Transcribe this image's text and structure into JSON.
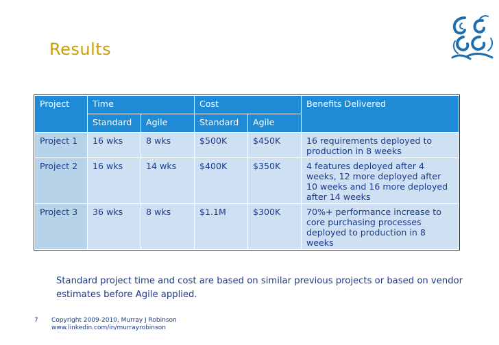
{
  "slide": {
    "title": "Results",
    "page_number": "7",
    "copyright": "Copyright 2009-2010, Murray J Robinson",
    "url": "www.linkedin.com/in/murrayrobinson",
    "note": "Standard project time and cost are based on similar previous projects or based on vendor estimates before Agile applied."
  },
  "table": {
    "headers": {
      "project": "Project",
      "time": "Time",
      "cost": "Cost",
      "benefits": "Benefits Delivered",
      "standard": "Standard",
      "agile": "Agile"
    },
    "rows": [
      {
        "project": "Project 1",
        "time_standard": "16 wks",
        "time_agile": "8 wks",
        "cost_standard": "$500K",
        "cost_agile": "$450K",
        "benefits": "16 requirements deployed to production in 8 weeks"
      },
      {
        "project": "Project 2",
        "time_standard": "16 wks",
        "time_agile": "14 wks",
        "cost_standard": "$400K",
        "cost_agile": "$350K",
        "benefits": "4 features deployed after 4 weeks, 12 more deployed after 10 weeks and 16 more deployed after 14 weeks"
      },
      {
        "project": "Project 3",
        "time_standard": "36 wks",
        "time_agile": "8 wks",
        "cost_standard": "$1.1M",
        "cost_agile": "$300K",
        "benefits": "70%+ performance increase to core purchasing processes deployed to production in 8 weeks"
      }
    ]
  },
  "colors": {
    "title": "#c8a000",
    "header_bg": "#1f8bd7",
    "row_label_bg": "#b7d3ea",
    "cell_bg": "#cfe0f3",
    "text": "#1a3a8a",
    "logo": "#1f6fb0"
  },
  "icons": {
    "logo": "swirl-wave-logo-icon"
  }
}
